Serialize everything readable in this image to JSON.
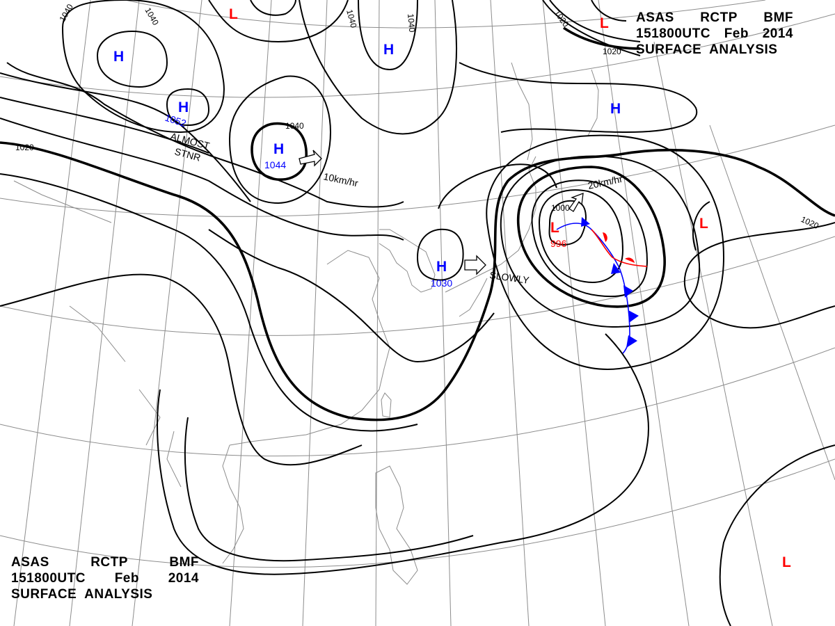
{
  "header": {
    "top": {
      "line1": [
        "ASAS",
        "RCTP",
        "BMF"
      ],
      "line2": [
        "151800UTC",
        "Feb",
        "2014"
      ],
      "line3": "SURFACE  ANALYSIS"
    },
    "bottom": {
      "line1": [
        "ASAS",
        "RCTP",
        "BMF"
      ],
      "line2": [
        "151800UTC",
        "Feb",
        "2014"
      ],
      "line3": "SURFACE  ANALYSIS"
    }
  },
  "colors": {
    "high": "#0000ff",
    "low": "#ff0000",
    "isobar": "#000000",
    "grid": "#8c8c8c",
    "warm_front": "#ff0000",
    "cold_front": "#0000ff"
  },
  "centers": {
    "h1": {
      "symbol": "H",
      "value": ""
    },
    "h2": {
      "symbol": "H",
      "value": "1052"
    },
    "h3": {
      "symbol": "H",
      "value": "1044"
    },
    "h4": {
      "symbol": "H",
      "value": ""
    },
    "h5": {
      "symbol": "H",
      "value": "1030"
    },
    "h6": {
      "symbol": "H",
      "value": ""
    },
    "l1": {
      "symbol": "L",
      "value": ""
    },
    "l2": {
      "symbol": "L",
      "value": ""
    },
    "l3": {
      "symbol": "L",
      "value": "996"
    },
    "l4": {
      "symbol": "L",
      "value": ""
    },
    "l5": {
      "symbol": "L",
      "value": ""
    }
  },
  "isobar_labels": {
    "a": "1040",
    "b": "1040",
    "c": "1040",
    "d": "1040",
    "e": "1040",
    "f": "1020",
    "g": "1020",
    "h": "1020",
    "i": "1020",
    "j": "1000"
  },
  "annotations": {
    "almost_line1": "ALMOST",
    "almost_line2": "STNR",
    "motion_h3": "10km/hr",
    "motion_low": "20km/hr",
    "slowly": "SLOWLY"
  }
}
